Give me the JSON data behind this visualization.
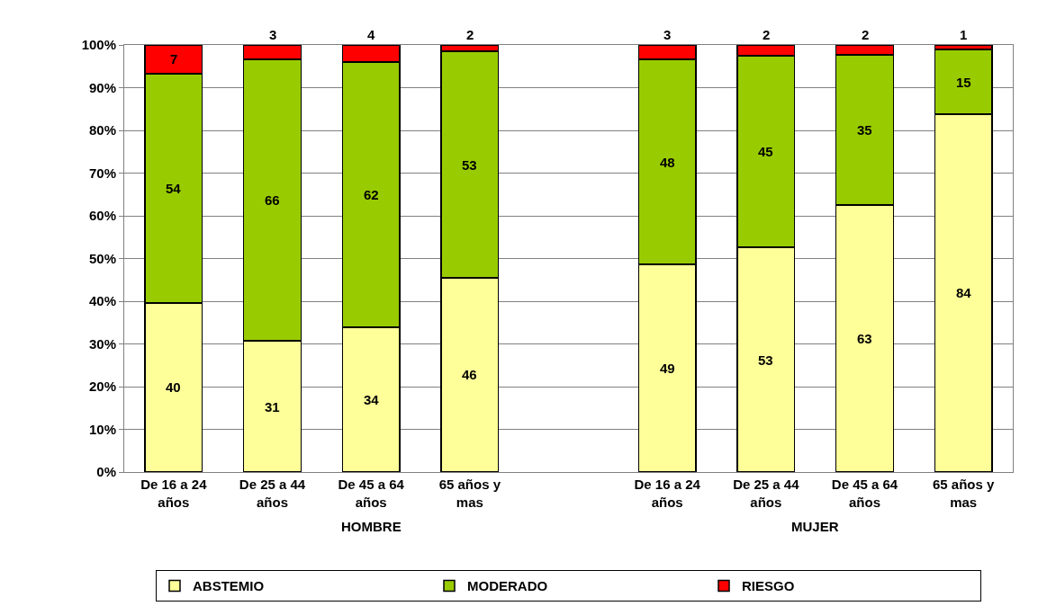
{
  "chart_data": {
    "type": "bar",
    "stacked": true,
    "categories": [
      "De 16 a 24 años",
      "De 25 a 44 años",
      "De 45 a 64 años",
      "65 años y mas",
      null,
      "De 16 a 24 años",
      "De 25 a 44 años",
      "De 45 a 64 años",
      "65 años y mas"
    ],
    "series": [
      {
        "name": "ABSTEMIO",
        "color": "#ffff99",
        "values": [
          39.6,
          30.7,
          33.9,
          45.5,
          null,
          48.6,
          52.6,
          62.5,
          83.8
        ],
        "value_labels": [
          "40",
          "31",
          "34",
          "46",
          null,
          "49",
          "53",
          "63",
          "84"
        ]
      },
      {
        "name": "MODERADO",
        "color": "#99cc00",
        "values": [
          53.7,
          65.9,
          62.1,
          53.0,
          null,
          48.0,
          44.9,
          35.2,
          15.1
        ],
        "value_labels": [
          "54",
          "66",
          "62",
          "53",
          null,
          "48",
          "45",
          "35",
          "15"
        ]
      },
      {
        "name": "RIESGO",
        "color": "#ff0000",
        "values": [
          6.7,
          3.4,
          4.0,
          1.5,
          null,
          3.4,
          2.4,
          2.3,
          1.1
        ],
        "value_labels": [
          "7",
          "3",
          "4",
          "2",
          null,
          "3",
          "2",
          "2",
          "1"
        ]
      }
    ],
    "ylim": [
      0,
      100
    ],
    "yticks": [
      {
        "value": 0,
        "label": "0%"
      },
      {
        "value": 10,
        "label": "10%"
      },
      {
        "value": 20,
        "label": "20%"
      },
      {
        "value": 30,
        "label": "30%"
      },
      {
        "value": 40,
        "label": "40%"
      },
      {
        "value": 50,
        "label": "50%"
      },
      {
        "value": 60,
        "label": "60%"
      },
      {
        "value": 70,
        "label": "70%"
      },
      {
        "value": 80,
        "label": "80%"
      },
      {
        "value": 90,
        "label": "90%"
      },
      {
        "value": 100,
        "label": "100%"
      }
    ],
    "grid": "y",
    "legend": "bottom",
    "annotations": [
      "HOMBRE",
      "MUJER"
    ]
  }
}
